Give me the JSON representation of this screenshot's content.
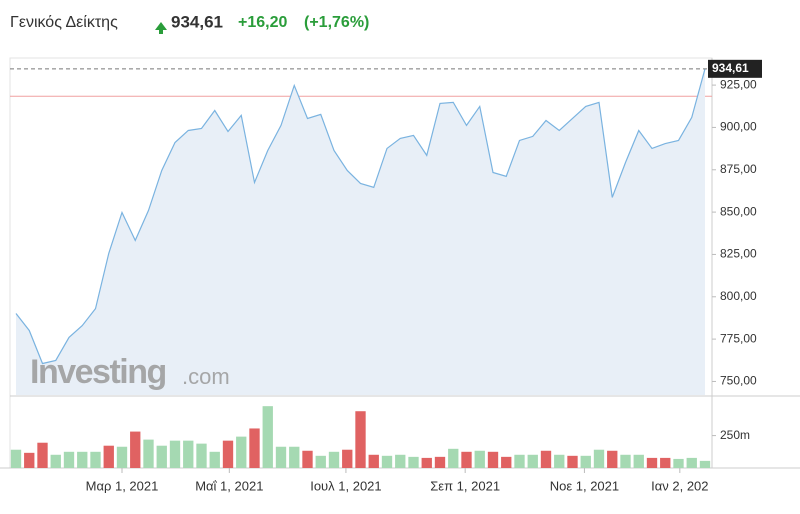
{
  "header": {
    "title": "Γενικός Δείκτης",
    "price": "934,61",
    "change": "+16,20",
    "change_pct": "(+1,76%)"
  },
  "watermark": {
    "brand": "Investing",
    "suffix": ".com"
  },
  "chart_data": [
    {
      "type": "area",
      "categories": [
        null,
        null,
        null,
        null,
        null,
        null,
        null,
        null,
        null,
        null,
        null,
        null,
        null,
        null,
        null,
        null,
        null,
        null,
        null,
        null,
        null,
        null,
        null,
        null,
        null,
        null,
        null,
        null,
        null,
        null,
        null,
        null,
        null,
        null,
        null,
        null,
        null,
        null,
        null,
        null,
        null,
        null,
        null,
        null,
        null,
        null,
        null,
        null,
        null,
        null,
        null,
        null,
        null
      ],
      "values": [
        790.1,
        780.1,
        760.6,
        762.4,
        776.0,
        783.0,
        793.0,
        825.6,
        849.8,
        833.3,
        851.0,
        874.6,
        891.1,
        898.2,
        899.4,
        910.0,
        897.6,
        907.1,
        867.5,
        886.4,
        901.2,
        924.8,
        905.3,
        907.7,
        886.4,
        874.6,
        866.9,
        864.6,
        887.6,
        893.5,
        895.3,
        883.5,
        914.2,
        914.8,
        901.2,
        912.4,
        873.4,
        871.1,
        892.3,
        894.7,
        904.1,
        898.2,
        905.3,
        912.4,
        914.8,
        858.7,
        879.3,
        898.2,
        887.6,
        890.5,
        892.3,
        905.9,
        934.61
      ],
      "color": "#7ab3e0",
      "fill": "#e8eff7",
      "ylim": [
        742,
        941
      ],
      "yticks": [
        {
          "value": 750,
          "label": "750,00"
        },
        {
          "value": 775,
          "label": "775,00"
        },
        {
          "value": 800,
          "label": "800,00"
        },
        {
          "value": 825,
          "label": "825,00"
        },
        {
          "value": 850,
          "label": "850,00"
        },
        {
          "value": 875,
          "label": "875,00"
        },
        {
          "value": 900,
          "label": "900,00"
        },
        {
          "value": 925,
          "label": "925,00"
        }
      ],
      "last_label": {
        "value": 934.61,
        "label": "934,61"
      },
      "reference_line": 918.41,
      "xticks": [
        {
          "value": 8.0,
          "label": "Μαρ 1, 2021"
        },
        {
          "value": 16.1,
          "label": "Μαΐ 1, 2021"
        },
        {
          "value": 24.9,
          "label": "Ιουλ 1, 2021"
        },
        {
          "value": 33.9,
          "label": "Σεπ 1, 2021"
        },
        {
          "value": 42.9,
          "label": "Νοε 1, 2021"
        },
        {
          "value": 50.1,
          "label": "Ιαν 2, 202"
        }
      ]
    },
    {
      "type": "bar",
      "values": [
        141,
        117,
        195,
        102,
        125,
        125,
        125,
        172,
        164,
        281,
        219,
        172,
        211,
        211,
        188,
        125,
        211,
        242,
        305,
        477,
        164,
        164,
        133,
        94,
        125,
        141,
        438,
        102,
        94,
        102,
        86,
        78,
        86,
        148,
        125,
        133,
        125,
        86,
        102,
        102,
        133,
        102,
        94,
        94,
        141,
        133,
        102,
        102,
        78,
        78,
        70,
        78,
        55
      ],
      "colors": [
        "#a5d9b2",
        "#e06262",
        "#e06262",
        "#a5d9b2",
        "#a5d9b2",
        "#a5d9b2",
        "#a5d9b2",
        "#e06262",
        "#a5d9b2",
        "#e06262",
        "#a5d9b2",
        "#a5d9b2",
        "#a5d9b2",
        "#a5d9b2",
        "#a5d9b2",
        "#a5d9b2",
        "#e06262",
        "#a5d9b2",
        "#e06262",
        "#a5d9b2",
        "#a5d9b2",
        "#a5d9b2",
        "#e06262",
        "#a5d9b2",
        "#a5d9b2",
        "#e06262",
        "#e06262",
        "#e06262",
        "#a5d9b2",
        "#a5d9b2",
        "#a5d9b2",
        "#e06262",
        "#e06262",
        "#a5d9b2",
        "#e06262",
        "#a5d9b2",
        "#e06262",
        "#e06262",
        "#a5d9b2",
        "#a5d9b2",
        "#e06262",
        "#a5d9b2",
        "#e06262",
        "#a5d9b2",
        "#a5d9b2",
        "#e06262",
        "#a5d9b2",
        "#a5d9b2",
        "#e06262",
        "#e06262",
        "#a5d9b2",
        "#a5d9b2",
        "#a5d9b2"
      ],
      "ylim": [
        0,
        540
      ],
      "yticks": [
        {
          "value": 250,
          "label": "250m"
        }
      ]
    }
  ]
}
